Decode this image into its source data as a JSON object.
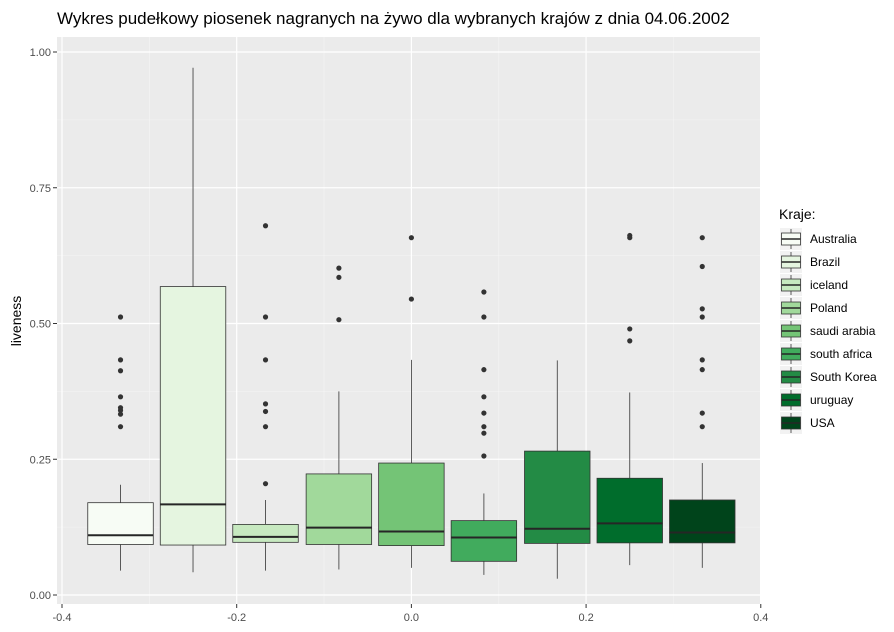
{
  "chart_data": {
    "type": "boxplot",
    "title": "Wykres pudełkowy piosenek nagranych na żywo dla wybranych krajów z dnia 04.06.2002",
    "xlabel": "",
    "ylabel": "liveness",
    "xlim": [
      -0.4,
      0.4
    ],
    "ylim": [
      0.0,
      1.0
    ],
    "x_ticks": [
      -0.4,
      -0.2,
      0.0,
      0.2,
      0.4
    ],
    "x_tick_labels": [
      "-0.4",
      "-0.2",
      "0.0",
      "0.2",
      "0.4"
    ],
    "y_ticks": [
      0.0,
      0.25,
      0.5,
      0.75,
      1.0
    ],
    "y_tick_labels": [
      "0.00",
      "0.25",
      "0.50",
      "0.75",
      "1.00"
    ],
    "grid": true,
    "legend": {
      "title": "Kraje:",
      "position": "right"
    },
    "series": [
      {
        "name": "Australia",
        "color": "#f7fcf5",
        "x_center": -0.333,
        "whisker_low": 0.045,
        "q1": 0.093,
        "median": 0.11,
        "q3": 0.17,
        "whisker_high": 0.203,
        "outliers": [
          0.31,
          0.333,
          0.34,
          0.345,
          0.365,
          0.413,
          0.433,
          0.512
        ]
      },
      {
        "name": "Brazil",
        "color": "#e5f5e0",
        "x_center": -0.25,
        "whisker_low": 0.042,
        "q1": 0.092,
        "median": 0.167,
        "q3": 0.568,
        "whisker_high": 0.971,
        "outliers": []
      },
      {
        "name": "iceland",
        "color": "#c7e9c0",
        "x_center": -0.167,
        "whisker_low": 0.045,
        "q1": 0.097,
        "median": 0.107,
        "q3": 0.13,
        "whisker_high": 0.175,
        "outliers": [
          0.205,
          0.31,
          0.338,
          0.352,
          0.433,
          0.512,
          0.68
        ]
      },
      {
        "name": "Poland",
        "color": "#a1d99b",
        "x_center": -0.083,
        "whisker_low": 0.047,
        "q1": 0.093,
        "median": 0.124,
        "q3": 0.223,
        "whisker_high": 0.375,
        "outliers": [
          0.507,
          0.585,
          0.602
        ]
      },
      {
        "name": "saudi arabia",
        "color": "#74c476",
        "x_center": 0.0,
        "whisker_low": 0.05,
        "q1": 0.091,
        "median": 0.117,
        "q3": 0.243,
        "whisker_high": 0.433,
        "outliers": [
          0.545,
          0.658
        ]
      },
      {
        "name": "south africa",
        "color": "#41ab5d",
        "x_center": 0.083,
        "whisker_low": 0.037,
        "q1": 0.062,
        "median": 0.106,
        "q3": 0.137,
        "whisker_high": 0.187,
        "outliers": [
          0.256,
          0.298,
          0.31,
          0.335,
          0.365,
          0.415,
          0.512,
          0.558
        ]
      },
      {
        "name": "South Korea",
        "color": "#238b45",
        "x_center": 0.167,
        "whisker_low": 0.03,
        "q1": 0.095,
        "median": 0.122,
        "q3": 0.265,
        "whisker_high": 0.432,
        "outliers": []
      },
      {
        "name": "uruguay",
        "color": "#006d2c",
        "x_center": 0.25,
        "whisker_low": 0.055,
        "q1": 0.096,
        "median": 0.132,
        "q3": 0.215,
        "whisker_high": 0.373,
        "outliers": [
          0.468,
          0.49,
          0.658,
          0.662
        ]
      },
      {
        "name": "USA",
        "color": "#00441b",
        "x_center": 0.333,
        "whisker_low": 0.05,
        "q1": 0.096,
        "median": 0.115,
        "q3": 0.175,
        "whisker_high": 0.243,
        "outliers": [
          0.31,
          0.335,
          0.415,
          0.433,
          0.512,
          0.527,
          0.605,
          0.658
        ]
      }
    ]
  }
}
